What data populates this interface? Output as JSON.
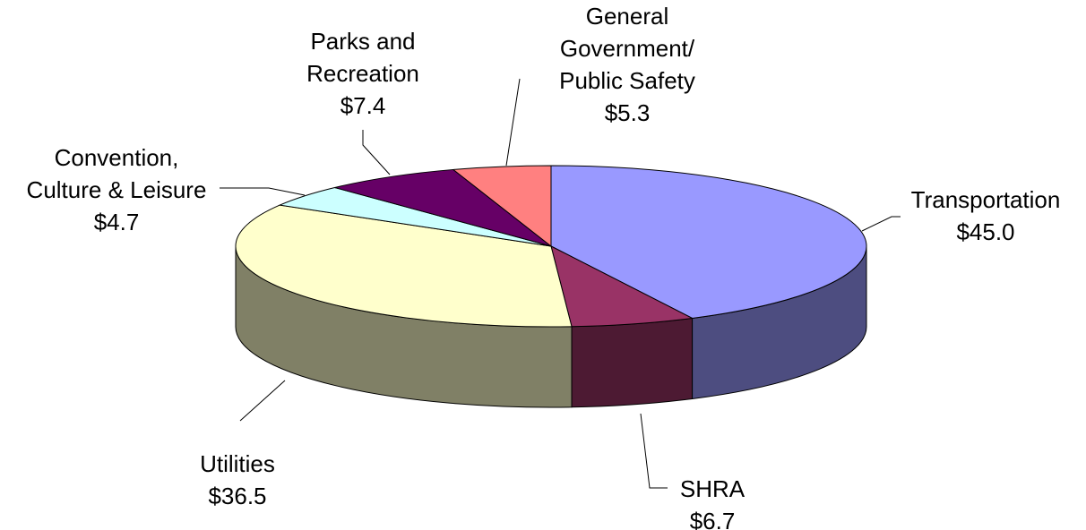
{
  "chart_data": {
    "type": "pie3d",
    "categories": [
      [
        "Transportation"
      ],
      [
        "SHRA"
      ],
      [
        "Utilities"
      ],
      [
        "Convention,",
        "Culture & Leisure"
      ],
      [
        "Parks and",
        "Recreation"
      ],
      [
        "General",
        "Government/",
        "Public Safety"
      ]
    ],
    "values": [
      45.0,
      6.7,
      36.5,
      4.7,
      7.4,
      5.3
    ],
    "value_labels": [
      "$45.0",
      "$6.7",
      "$36.5",
      "$4.7",
      "$7.4",
      "$5.3"
    ],
    "colors": [
      "#9999ff",
      "#993366",
      "#ffffcc",
      "#ccffff",
      "#660066",
      "#ff8080"
    ]
  }
}
